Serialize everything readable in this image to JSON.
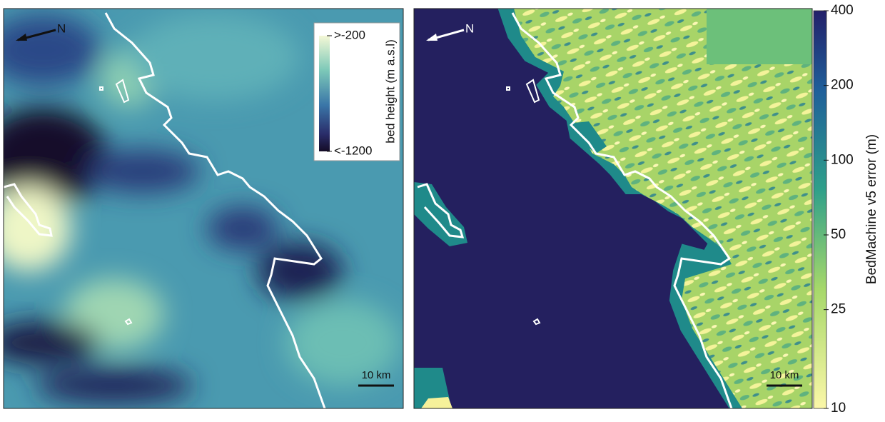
{
  "panels": [
    {
      "north_label": "N",
      "scale_bar": "10 km",
      "colorbar": {
        "label": "bed height (m a.s.l)",
        "lim": [
          -1200,
          -200
        ],
        "ticks": [
          {
            "value": -200,
            "label": ">-200"
          },
          {
            "value": -1200,
            "label": "<-1200"
          }
        ]
      }
    },
    {
      "north_label": "N",
      "scale_bar": "10 km",
      "colorbar": {
        "label": "BedMachine v5 error (m)",
        "lim": [
          10,
          400
        ],
        "log": true,
        "ticks": [
          10,
          25,
          50,
          100,
          200,
          400
        ]
      }
    }
  ]
}
